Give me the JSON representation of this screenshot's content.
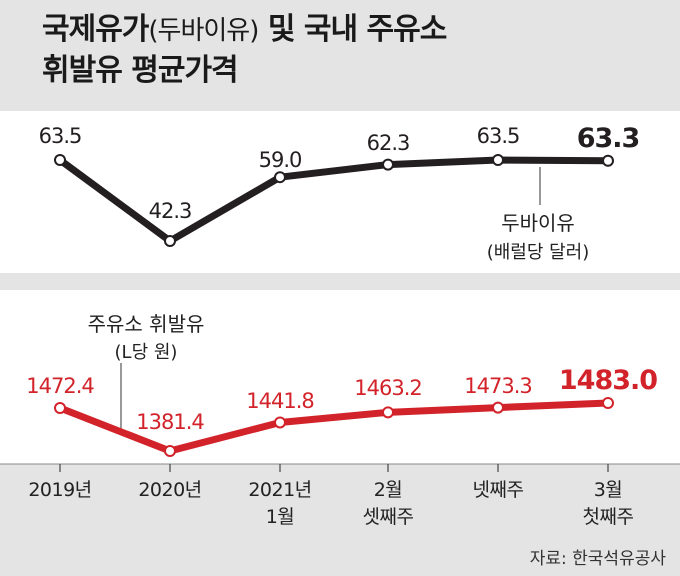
{
  "title": {
    "line1_main": "국제유가",
    "line1_paren": "(두바이유)",
    "line1_rest": " 및 국내 주유소",
    "line2": "휘발유 평균가격"
  },
  "colors": {
    "background": "#e4e4e4",
    "panel": "#ffffff",
    "dubai": "#231f20",
    "gasoline": "#d3232a"
  },
  "source": "자료: 한국석유공사",
  "chart_data": [
    {
      "type": "line",
      "series": [
        {
          "name": "두바이유",
          "unit": "(배럴당 달러)",
          "values": [
            63.5,
            42.3,
            59.0,
            62.3,
            63.5,
            63.3
          ],
          "labels": [
            "63.5",
            "42.3",
            "59.0",
            "62.3",
            "63.5",
            "63.3"
          ]
        }
      ]
    },
    {
      "type": "line",
      "categories": [
        [
          "2019년"
        ],
        [
          "2020년"
        ],
        [
          "2021년",
          "1월"
        ],
        [
          "2월",
          "셋째주"
        ],
        [
          "넷째주"
        ],
        [
          "3월",
          "첫째주"
        ]
      ],
      "series": [
        {
          "name": "주유소 휘발유",
          "unit": "(L당 원)",
          "values": [
            1472.4,
            1381.4,
            1441.8,
            1463.2,
            1473.3,
            1483.0
          ],
          "labels": [
            "1472.4",
            "1381.4",
            "1441.8",
            "1463.2",
            "1473.3",
            "1483.0"
          ]
        }
      ]
    }
  ]
}
